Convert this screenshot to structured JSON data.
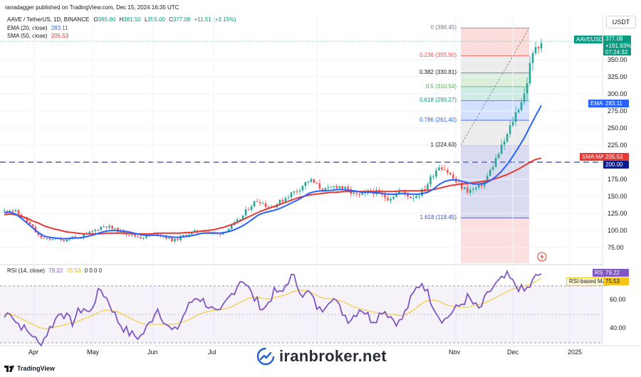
{
  "header": {
    "publisher": "ranadagger published on TradingView.com, Dec 15, 2024 16:35 UTC",
    "symbol": "AAVE / TetherUS, 1D, BINANCE",
    "ohlc": {
      "o_label": "O",
      "o": "365.60",
      "h_label": "H",
      "h": "381.50",
      "l_label": "L",
      "l": "355.00",
      "c_label": "C",
      "c": "377.08",
      "change": "+11.51 (+3.15%)"
    },
    "ema_label": "EMA (20, close)",
    "ema_value": "283.11",
    "sma_label": "SMA (50, close)",
    "sma_value": "205.53",
    "currency": "USDT"
  },
  "colors": {
    "up": "#26a69a",
    "down": "#ef5350",
    "ema": "#2962ff",
    "sma": "#e53935",
    "rsi": "#7e57c2",
    "rsi_ma": "#f5c518",
    "hline": "#0d1b8a"
  },
  "price_axis": {
    "ticks": [
      "350.00",
      "325.00",
      "300.00",
      "275.00",
      "250.00",
      "225.00",
      "200.00",
      "175.00",
      "150.00",
      "125.00",
      "100.00",
      "75.00"
    ]
  },
  "time_axis": {
    "labels": [
      "Apr",
      "May",
      "Jun",
      "Jul",
      "Nov",
      "Dec",
      "2025"
    ]
  },
  "tags": {
    "last_symbol": "AAVEUSDT",
    "last_price": "377.08",
    "last_change": "+191.93%",
    "last_time": "07:24:32",
    "ema_tag": "EMA",
    "ema_val": "283.11",
    "sma_tag": "SMA:MA",
    "sma_val": "205.53",
    "support": "200.00",
    "rsi_tag": "RSI",
    "rsi_val": "79.22",
    "rsima_tag": "RSI-based MA",
    "rsima_val": "75.53"
  },
  "fib": [
    {
      "label": "0 (396.45)"
    },
    {
      "label": "0.236 (355.90)"
    },
    {
      "label": "0.382 (330.81)"
    },
    {
      "label": "0.5 (310.54)"
    },
    {
      "label": "0.618 (290.27)"
    },
    {
      "label": "0.786 (261.40)"
    },
    {
      "label": "1 (224.63)"
    },
    {
      "label": "1.618 (118.45)"
    }
  ],
  "rsi_panel": {
    "label": "RSI (14, close)",
    "v1": "79.22",
    "v2": "75.53",
    "zeros": "0 0 0 0",
    "ticks": [
      "60.00",
      "40.00"
    ]
  },
  "footer": {
    "logo_text": "TradingView",
    "watermark": "iranbroker.net"
  },
  "chart_data": {
    "type": "candlestick",
    "title": "AAVE / TetherUS, 1D, BINANCE",
    "ylim": [
      55,
      405
    ],
    "support_level": 200,
    "months": [
      "Apr",
      "May",
      "Jun",
      "Jul",
      "Nov",
      "Dec",
      "2025"
    ],
    "price_anchors": [
      128,
      131,
      127,
      120,
      113,
      104,
      92,
      88,
      86,
      90,
      85,
      87,
      91,
      88,
      93,
      96,
      100,
      105,
      107,
      103,
      100,
      97,
      95,
      92,
      90,
      91,
      93,
      96,
      92,
      88,
      85,
      89,
      94,
      96,
      99,
      101,
      98,
      96,
      95,
      100,
      104,
      112,
      119,
      131,
      140,
      145,
      138,
      134,
      138,
      143,
      150,
      155,
      160,
      168,
      174,
      168,
      162,
      158,
      163,
      166,
      162,
      157,
      152,
      150,
      155,
      158,
      155,
      150,
      147,
      152,
      158,
      154,
      148,
      152,
      158,
      170,
      185,
      196,
      190,
      180,
      170,
      163,
      158,
      160,
      165,
      172,
      188,
      205,
      222,
      240,
      262,
      282,
      300,
      340,
      372,
      377
    ],
    "ema20_anchors": [
      126,
      127,
      124,
      118,
      111,
      104,
      97,
      92,
      90,
      89,
      88,
      88,
      89,
      89,
      90,
      92,
      94,
      97,
      99,
      100,
      100,
      99,
      98,
      96,
      94,
      93,
      93,
      93,
      92,
      91,
      90,
      90,
      91,
      92,
      94,
      96,
      96,
      96,
      96,
      97,
      99,
      102,
      106,
      111,
      117,
      123,
      126,
      128,
      130,
      133,
      137,
      141,
      145,
      150,
      155,
      157,
      158,
      158,
      159,
      160,
      160,
      159,
      158,
      156,
      156,
      156,
      155,
      154,
      153,
      153,
      154,
      154,
      153,
      153,
      154,
      156,
      161,
      168,
      172,
      174,
      174,
      172,
      170,
      168,
      168,
      169,
      173,
      179,
      187,
      197,
      209,
      222,
      236,
      252,
      268,
      283
    ],
    "sma50_anchors": [
      123,
      124,
      123,
      121,
      118,
      114,
      111,
      107,
      104,
      102,
      100,
      98,
      97,
      96,
      95,
      95,
      95,
      95,
      96,
      96,
      96,
      96,
      96,
      95,
      95,
      95,
      95,
      96,
      96,
      96,
      96,
      96,
      97,
      97,
      98,
      99,
      100,
      101,
      103,
      105,
      108,
      111,
      115,
      119,
      123,
      127,
      130,
      133,
      136,
      139,
      142,
      145,
      148,
      150,
      152,
      153,
      154,
      155,
      156,
      156,
      157,
      157,
      157,
      157,
      157,
      157,
      157,
      157,
      157,
      157,
      158,
      158,
      158,
      158,
      158,
      159,
      160,
      162,
      164,
      166,
      167,
      168,
      169,
      170,
      171,
      172,
      174,
      176,
      179,
      182,
      186,
      190,
      195,
      200,
      204,
      206
    ],
    "rsi_anchors": [
      48,
      53,
      45,
      42,
      38,
      36,
      29,
      33,
      40,
      46,
      53,
      48,
      44,
      51,
      55,
      50,
      60,
      68,
      62,
      55,
      46,
      41,
      37,
      35,
      34,
      39,
      46,
      55,
      48,
      41,
      37,
      43,
      52,
      58,
      63,
      60,
      57,
      52,
      49,
      57,
      63,
      69,
      76,
      70,
      62,
      58,
      53,
      61,
      67,
      63,
      73,
      77,
      70,
      63,
      66,
      57,
      52,
      59,
      63,
      56,
      51,
      46,
      50,
      55,
      51,
      46,
      48,
      54,
      50,
      46,
      44,
      52,
      61,
      69,
      73,
      64,
      56,
      48,
      46,
      51,
      54,
      58,
      62,
      57,
      53,
      60,
      67,
      71,
      74,
      77,
      72,
      69,
      66,
      70,
      76,
      79
    ],
    "rsi_ma_anchors": [
      50,
      50,
      49,
      47,
      45,
      43,
      41,
      40,
      40,
      41,
      42,
      43,
      44,
      45,
      47,
      48,
      50,
      52,
      53,
      53,
      52,
      50,
      48,
      46,
      44,
      43,
      43,
      43,
      43,
      43,
      43,
      44,
      45,
      47,
      49,
      51,
      52,
      53,
      53,
      54,
      55,
      57,
      59,
      61,
      62,
      62,
      61,
      61,
      62,
      63,
      64,
      66,
      67,
      67,
      66,
      64,
      62,
      61,
      61,
      60,
      59,
      57,
      55,
      54,
      53,
      52,
      51,
      51,
      50,
      50,
      49,
      50,
      52,
      55,
      58,
      60,
      60,
      59,
      57,
      56,
      55,
      55,
      55,
      56,
      57,
      58,
      60,
      62,
      64,
      66,
      68,
      69,
      70,
      71,
      73,
      75.5
    ]
  }
}
